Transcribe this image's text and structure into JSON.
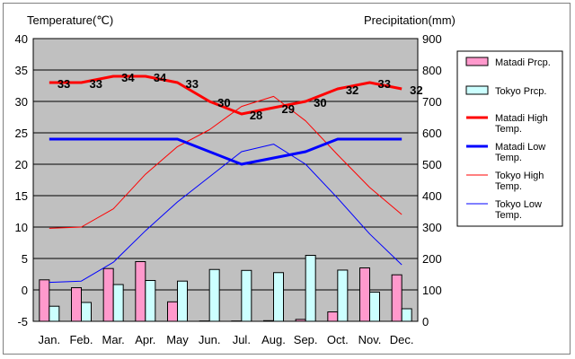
{
  "chart_data": {
    "type": "bar+line",
    "categories": [
      "Jan.",
      "Feb.",
      "Mar.",
      "Apr.",
      "May",
      "Jun.",
      "Jul.",
      "Aug.",
      "Sep.",
      "Oct.",
      "Nov.",
      "Dec."
    ],
    "ylabel_left": "Temperature(℃)",
    "ylabel_right": "Precipitation(mm)",
    "y_left_range": [
      -5,
      40
    ],
    "y_right_range": [
      0,
      900
    ],
    "y_left_ticks": [
      "40",
      "35",
      "30",
      "25",
      "20",
      "15",
      "10",
      "5",
      "0",
      "-5"
    ],
    "y_right_ticks": [
      "900",
      "800",
      "700",
      "600",
      "500",
      "400",
      "300",
      "200",
      "100",
      "0"
    ],
    "grid": true,
    "legend_position": "right",
    "bar_series": [
      {
        "name": "Matadi Prcp.",
        "axis": "right",
        "color": "#ff99cc",
        "values": [
          132,
          107,
          168,
          190,
          62,
          1,
          1,
          2,
          6,
          30,
          170,
          148
        ]
      },
      {
        "name": "Tokyo Prcp.",
        "axis": "right",
        "color": "#ccffff",
        "values": [
          48,
          60,
          117,
          130,
          128,
          165,
          162,
          155,
          210,
          163,
          93,
          40
        ]
      }
    ],
    "line_series": [
      {
        "name": "Matadi High Temp.",
        "axis": "left",
        "color": "#ff0000",
        "width": 3,
        "values": [
          33,
          33,
          34,
          34,
          33,
          30,
          28,
          29,
          30,
          32,
          33,
          32
        ],
        "data_labels": [
          "33",
          "33",
          "34",
          "34",
          "33",
          "30",
          "28",
          "29",
          "30",
          "32",
          "33",
          "32"
        ]
      },
      {
        "name": "Matadi Low Temp.",
        "axis": "left",
        "color": "#0000ff",
        "width": 3,
        "values": [
          24,
          24,
          24,
          24,
          24,
          22,
          20,
          21,
          22,
          24,
          24,
          24
        ]
      },
      {
        "name": "Tokyo High Temp.",
        "axis": "left",
        "color": "#ff0000",
        "width": 1,
        "values": [
          9.8,
          10,
          12.9,
          18.4,
          22.8,
          25.5,
          29.2,
          30.8,
          26.9,
          21.5,
          16.3,
          12
        ]
      },
      {
        "name": "Tokyo Low Temp.",
        "axis": "left",
        "color": "#0000ff",
        "width": 1,
        "values": [
          1.2,
          1.4,
          4.4,
          9.4,
          14,
          18,
          22,
          23.2,
          20,
          14.6,
          8.9,
          4
        ]
      }
    ]
  }
}
